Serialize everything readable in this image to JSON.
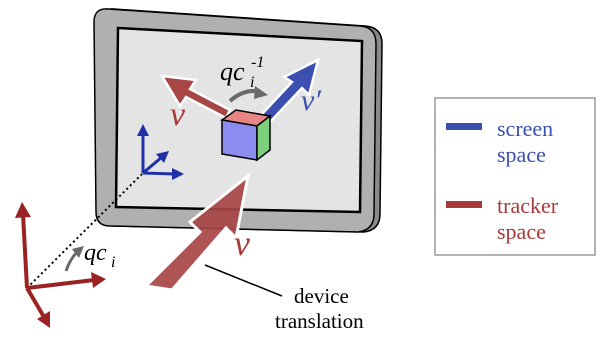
{
  "colors": {
    "screen_blue": "#3b4fb0",
    "tracker_red": "#a83a3a",
    "screen_bg": "#e4e4e4",
    "frame_gray": "#b0b0b0",
    "legend_border": "#9a9a9a",
    "cube_top": "#e88585",
    "cube_front": "#8b8bf0",
    "cube_side": "#7ed07e",
    "rotation_gray": "#6a6a6a"
  },
  "arrows": {
    "v_left": "v",
    "v_prime": "v′",
    "v_device": "v"
  },
  "rotation_inverse": {
    "base": "qc",
    "sub": "i",
    "sup": "-1"
  },
  "rotation_tracker": {
    "base": "qc",
    "sub": "i"
  },
  "annotation": {
    "line1": "device",
    "line2": "translation"
  },
  "legend": {
    "screen_line1": "screen",
    "screen_line2": "space",
    "tracker_line1": "tracker",
    "tracker_line2": "space"
  }
}
